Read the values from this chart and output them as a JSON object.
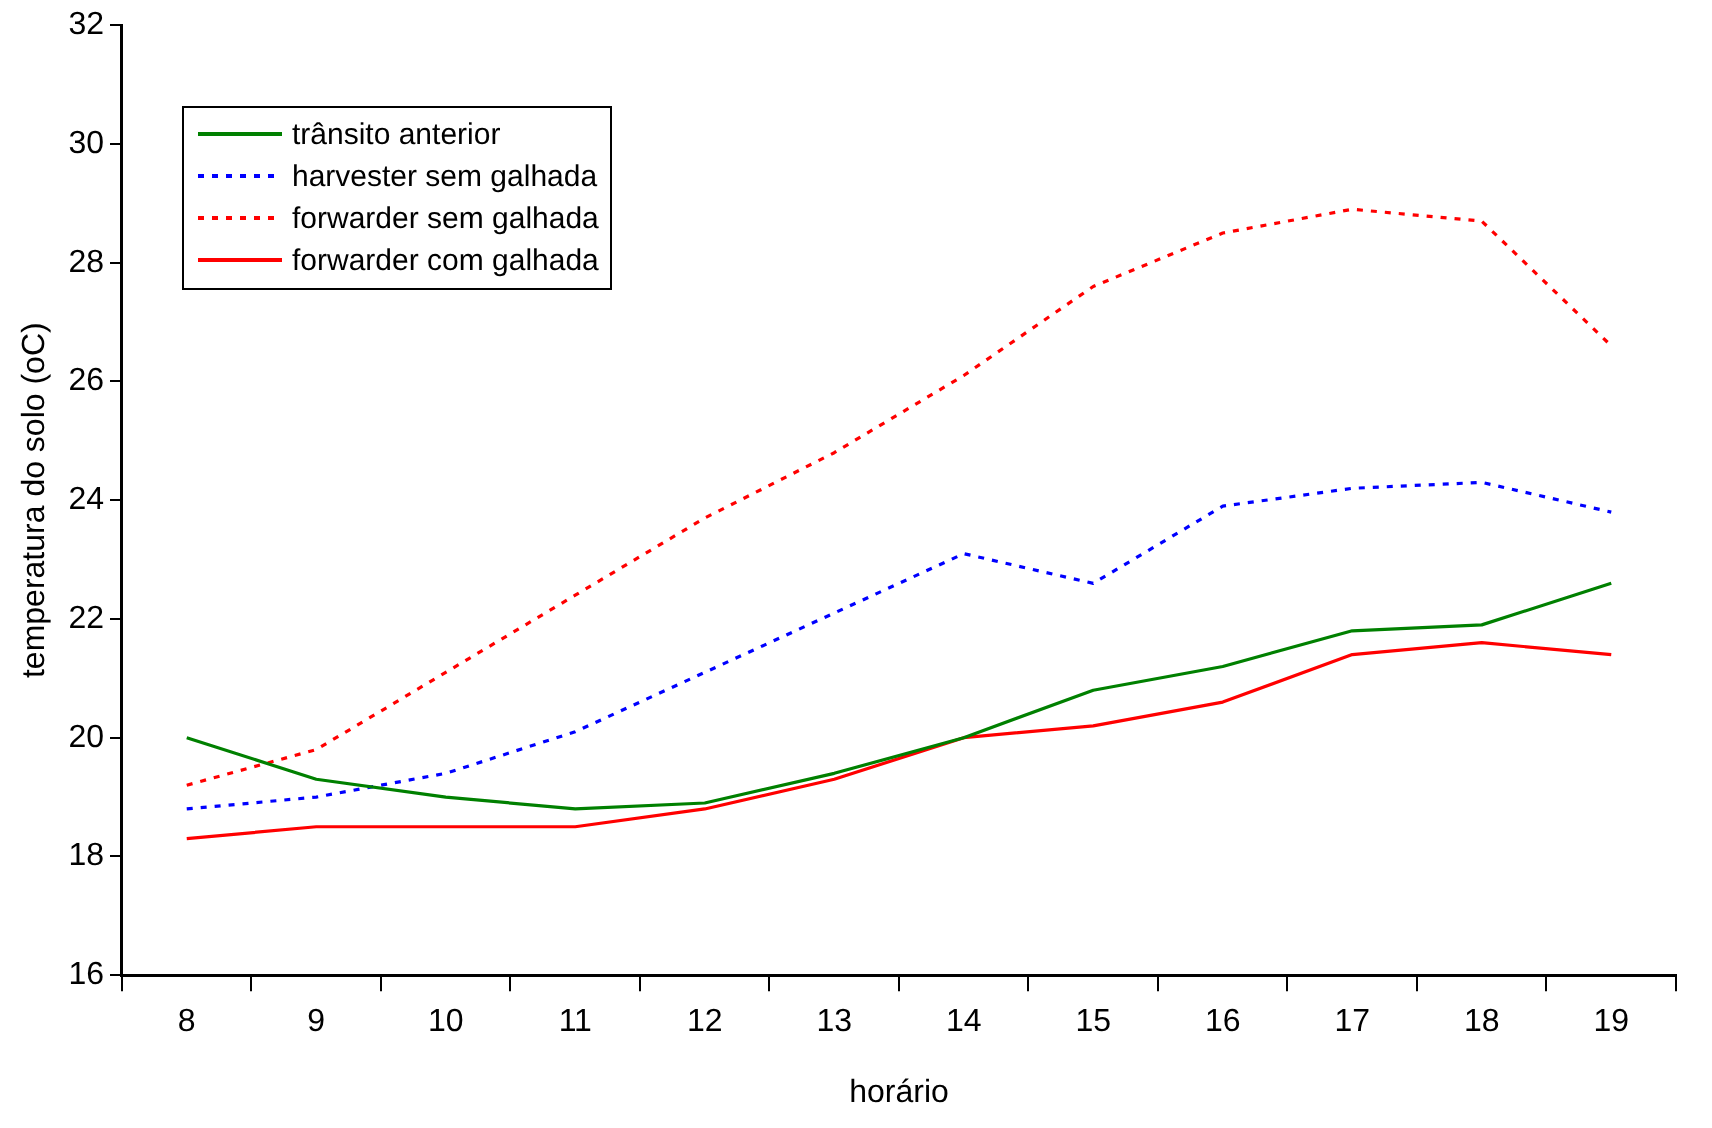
{
  "chart_data": {
    "type": "line",
    "xlabel": "horário",
    "ylabel": "temperatura do solo (oC)",
    "categories": [
      "8",
      "9",
      "10",
      "11",
      "12",
      "13",
      "14",
      "15",
      "16",
      "17",
      "18",
      "19"
    ],
    "ylim": [
      16,
      32
    ],
    "yticks": [
      16,
      18,
      20,
      22,
      24,
      26,
      28,
      30,
      32
    ],
    "grid": false,
    "legend": "top left",
    "marker": "none",
    "series": [
      {
        "name": "trânsito anterior",
        "color": "#008000",
        "line_style": "solid",
        "values": [
          20.0,
          19.3,
          19.0,
          18.8,
          18.9,
          19.4,
          20.0,
          20.8,
          21.2,
          21.8,
          21.9,
          22.6
        ]
      },
      {
        "name": "harvester sem galhada",
        "color": "#0000ff",
        "line_style": "dotted",
        "values": [
          18.8,
          19.0,
          19.4,
          20.1,
          21.1,
          22.1,
          23.1,
          22.6,
          23.9,
          24.2,
          24.3,
          23.8
        ]
      },
      {
        "name": "forwarder sem galhada",
        "color": "#ff0000",
        "line_style": "dotted",
        "values": [
          19.2,
          19.8,
          21.1,
          22.4,
          23.7,
          24.8,
          26.1,
          27.6,
          28.5,
          28.9,
          28.7,
          26.6
        ]
      },
      {
        "name": "forwarder com galhada",
        "color": "#ff0000",
        "line_style": "solid",
        "values": [
          18.3,
          18.5,
          18.5,
          18.5,
          18.8,
          19.3,
          20.0,
          20.2,
          20.6,
          21.4,
          21.6,
          21.4
        ]
      }
    ]
  }
}
